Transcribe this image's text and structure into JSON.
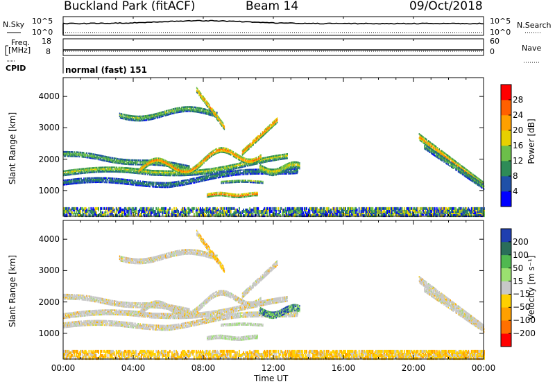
{
  "header": {
    "station": "Buckland Park (fitACF)",
    "beam": "Beam 14",
    "date": "09/Oct/2018"
  },
  "summary_panels": {
    "nsky_label": "N.Sky",
    "nsearch_label": "N.Search",
    "noise_scale_top": "10^5",
    "noise_scale_bottom": "10^0",
    "freq_label_line1": "Freq.",
    "freq_label_line2": "[MHz]",
    "freq_ticks": [
      "18",
      "8"
    ],
    "nave_label": "Nave",
    "nave_ticks": [
      "60",
      "0"
    ],
    "cpid_label": "CPID",
    "cpid_value": "normal (fast) 151"
  },
  "colors": {
    "power": [
      "#0000ff",
      "#1f50a8",
      "#2e8b57",
      "#6cbf4a",
      "#e8d000",
      "#ffa000",
      "#ff6000",
      "#ff0000"
    ],
    "velocity": [
      "#1f3fb0",
      "#2a6e5a",
      "#50b850",
      "#9be070",
      "#c8c8c8",
      "#ffd000",
      "#ffa000",
      "#ff7000",
      "#ff0000"
    ]
  },
  "chart_data": [
    {
      "type": "heatmap",
      "name": "power",
      "ylabel": "Slant Range [km]",
      "x_start": "00:00",
      "x_end": "00:00",
      "y_ticks": [
        1000,
        2000,
        3000,
        4000
      ],
      "ylim": [
        180,
        4600
      ],
      "colorbar_label": "Power [dB]",
      "colorbar_ticks": [
        4,
        8,
        12,
        16,
        20,
        24,
        28
      ],
      "colorbar_range": [
        0,
        32
      ]
    },
    {
      "type": "heatmap",
      "name": "velocity",
      "xlabel": "Time UT",
      "ylabel": "Slant Range [km]",
      "x_ticks": [
        "00:00",
        "04:00",
        "08:00",
        "12:00",
        "16:00",
        "20:00",
        "00:00"
      ],
      "y_ticks": [
        1000,
        2000,
        3000,
        4000
      ],
      "ylim": [
        180,
        4600
      ],
      "colorbar_label": "Velocity [m s⁻¹]",
      "colorbar_ticks": [
        200,
        100,
        50,
        15,
        -15,
        -50,
        -100,
        -200
      ]
    }
  ]
}
